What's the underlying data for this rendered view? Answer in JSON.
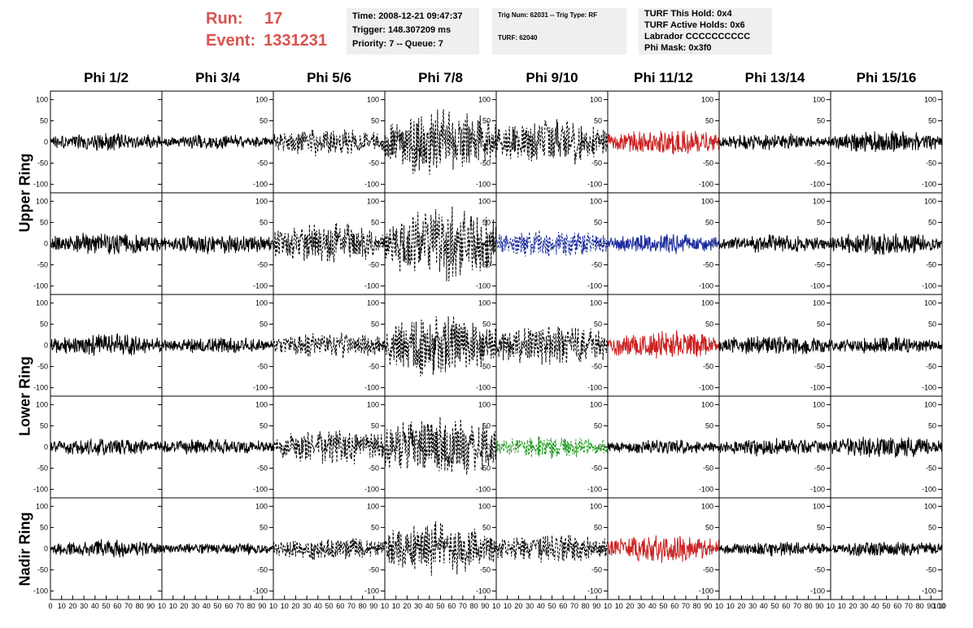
{
  "header": {
    "run_label": "Run:",
    "run_value": "17",
    "event_label": "Event:",
    "event_value": "1331231",
    "box1": {
      "time": "Time: 2008-12-21 09:47:37",
      "trigger": "Trigger: 148.307209 ms",
      "priority": "Priority: 7 -- Queue: 7"
    },
    "box2": {
      "trig": "Trig Num: 62031 -- Trig Type: RF",
      "turf": "TURF: 62040"
    },
    "box3": {
      "hold": "TURF This Hold: 0x4",
      "active": "TURF Active Holds: 0x6",
      "labrador": "Labrador CCCCCCCCCC",
      "phimask": "Phi Mask: 0x3f0"
    }
  },
  "chart_data": {
    "type": "line",
    "columns": [
      "Phi 1/2",
      "Phi 3/4",
      "Phi 5/6",
      "Phi 7/8",
      "Phi 9/10",
      "Phi 11/12",
      "Phi 13/14",
      "Phi 15/16"
    ],
    "row_labels": [
      "Upper Ring",
      "Lower Ring",
      "Nadir Ring"
    ],
    "ylim": [
      -120,
      120
    ],
    "xlim": [
      0,
      100
    ],
    "y_ticks": [
      100,
      50,
      0,
      -50,
      -100
    ],
    "x_ticks": [
      0,
      10,
      20,
      30,
      40,
      50,
      60,
      70,
      80,
      90,
      100
    ],
    "x_tick_labels": [
      "10",
      "20",
      "30",
      "40",
      "50",
      "60",
      "70",
      "80",
      "90",
      "10"
    ],
    "first_x_label": "0",
    "last_x_label": "100",
    "colors": {
      "black": "#000000",
      "red": "#cc2222",
      "blue": "#1a2a9c",
      "green": "#229922"
    },
    "panels": [
      [
        {
          "amp": 18,
          "style": "solid",
          "color": "black"
        },
        {
          "amp": 14,
          "style": "solid",
          "color": "black"
        },
        {
          "amp": 28,
          "style": "dashed",
          "color": "black"
        },
        {
          "amp": 70,
          "style": "dashed",
          "color": "black"
        },
        {
          "amp": 45,
          "style": "dashed",
          "color": "black"
        },
        {
          "amp": 25,
          "style": "solid",
          "color": "red"
        },
        {
          "amp": 16,
          "style": "solid",
          "color": "black"
        },
        {
          "amp": 22,
          "style": "solid",
          "color": "black"
        }
      ],
      [
        {
          "amp": 22,
          "style": "solid",
          "color": "black"
        },
        {
          "amp": 20,
          "style": "solid",
          "color": "black"
        },
        {
          "amp": 40,
          "style": "dashed",
          "color": "black"
        },
        {
          "amp": 75,
          "style": "dashed",
          "color": "black"
        },
        {
          "amp": 28,
          "style": "dashed",
          "color": "blue"
        },
        {
          "amp": 20,
          "style": "solid",
          "color": "blue"
        },
        {
          "amp": 18,
          "style": "solid",
          "color": "black"
        },
        {
          "amp": 22,
          "style": "solid",
          "color": "black"
        }
      ],
      [
        {
          "amp": 22,
          "style": "solid",
          "color": "black"
        },
        {
          "amp": 16,
          "style": "solid",
          "color": "black"
        },
        {
          "amp": 25,
          "style": "dashed",
          "color": "black"
        },
        {
          "amp": 60,
          "style": "dashed",
          "color": "black"
        },
        {
          "amp": 40,
          "style": "dashed",
          "color": "black"
        },
        {
          "amp": 30,
          "style": "solid",
          "color": "red"
        },
        {
          "amp": 20,
          "style": "solid",
          "color": "black"
        },
        {
          "amp": 16,
          "style": "solid",
          "color": "black"
        }
      ],
      [
        {
          "amp": 18,
          "style": "solid",
          "color": "black"
        },
        {
          "amp": 16,
          "style": "solid",
          "color": "black"
        },
        {
          "amp": 35,
          "style": "dashed",
          "color": "black"
        },
        {
          "amp": 65,
          "style": "dashed",
          "color": "black"
        },
        {
          "amp": 22,
          "style": "dashed",
          "color": "green"
        },
        {
          "amp": 14,
          "style": "solid",
          "color": "black"
        },
        {
          "amp": 18,
          "style": "solid",
          "color": "black"
        },
        {
          "amp": 22,
          "style": "solid",
          "color": "black"
        }
      ],
      [
        {
          "amp": 18,
          "style": "solid",
          "color": "black"
        },
        {
          "amp": 12,
          "style": "solid",
          "color": "black"
        },
        {
          "amp": 22,
          "style": "dashed",
          "color": "black"
        },
        {
          "amp": 50,
          "style": "dashed",
          "color": "black"
        },
        {
          "amp": 28,
          "style": "dashed",
          "color": "black"
        },
        {
          "amp": 28,
          "style": "solid",
          "color": "red"
        },
        {
          "amp": 14,
          "style": "solid",
          "color": "black"
        },
        {
          "amp": 16,
          "style": "solid",
          "color": "black"
        }
      ]
    ]
  }
}
